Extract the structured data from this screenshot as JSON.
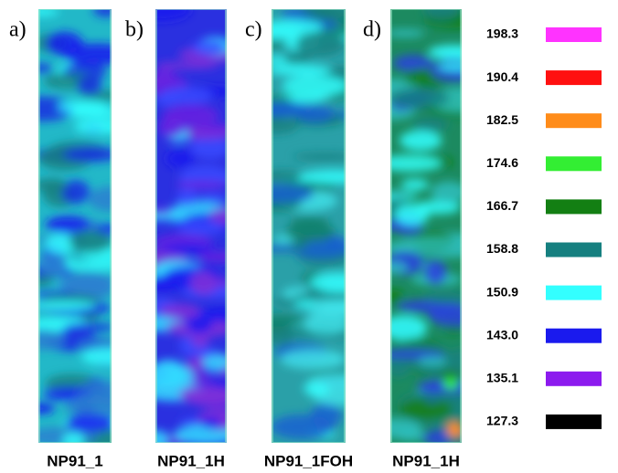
{
  "panels": [
    {
      "letter": "a)",
      "caption": "NP91_1"
    },
    {
      "letter": "b)",
      "caption": "NP91_1H"
    },
    {
      "letter": "c)",
      "caption": "NP91_1FOH"
    },
    {
      "letter": "d)",
      "caption": "NP91_1H"
    }
  ],
  "legend": [
    {
      "label": "198.3",
      "color": "#ff33ff"
    },
    {
      "label": "190.4",
      "color": "#ff1010"
    },
    {
      "label": "182.5",
      "color": "#ff8c1a"
    },
    {
      "label": "174.6",
      "color": "#33ee33"
    },
    {
      "label": "166.7",
      "color": "#137f13"
    },
    {
      "label": "158.8",
      "color": "#168080"
    },
    {
      "label": "150.9",
      "color": "#33ffff"
    },
    {
      "label": "143.0",
      "color": "#1a1aee"
    },
    {
      "label": "135.1",
      "color": "#8c1aee"
    },
    {
      "label": "127.3",
      "color": "#000000"
    }
  ]
}
